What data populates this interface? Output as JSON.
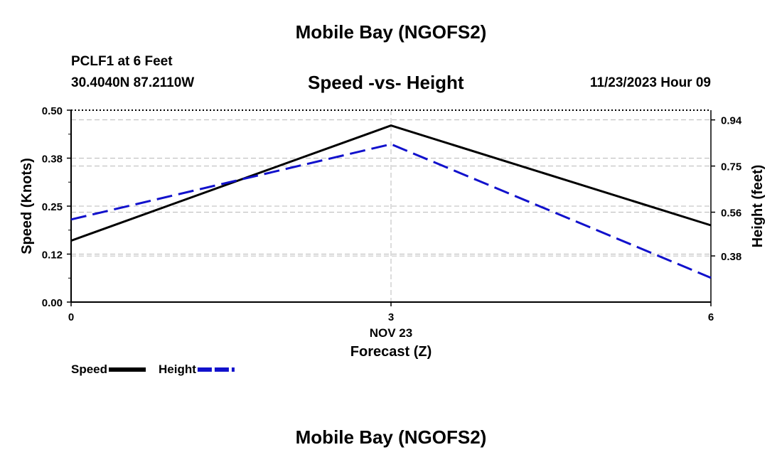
{
  "page": {
    "title_top": "Mobile Bay (NGOFS2)",
    "title_bottom": "Mobile Bay (NGOFS2)",
    "station": "PCLF1 at 6 Feet",
    "coords": "30.4040N  87.2110W",
    "chart_title": "Speed -vs- Height",
    "datetime": "11/23/2023 Hour 09"
  },
  "chart_data": {
    "type": "line",
    "title": "Speed -vs- Height",
    "xlabel": "Forecast (Z)",
    "xsublabel": "NOV 23",
    "x": [
      0,
      3,
      6
    ],
    "x_ticks": [
      "0",
      "3",
      "6"
    ],
    "xlim": [
      0,
      6
    ],
    "ylabel_left": "Speed (Knots)",
    "ylabel_right": "Height (feet)",
    "ylim_left": [
      0,
      0.5
    ],
    "ylim_right": [
      0.19,
      0.98
    ],
    "yticks_left": [
      "0.00",
      "0.12",
      "0.25",
      "0.38",
      "0.50"
    ],
    "yticks_left_values": [
      0,
      0.125,
      0.25,
      0.375,
      0.5
    ],
    "yticks_right": [
      "0.38",
      "0.56",
      "0.75",
      "0.94"
    ],
    "yticks_right_values": [
      0.38,
      0.56,
      0.75,
      0.94
    ],
    "grid": true,
    "legend_placement": "bottom-left",
    "series": [
      {
        "name": "Speed",
        "axis": "left",
        "values": [
          0.16,
          0.46,
          0.2
        ],
        "color": "#000000",
        "dash": "solid"
      },
      {
        "name": "Height",
        "axis": "right",
        "values": [
          0.53,
          0.84,
          0.29
        ],
        "color": "#1111cc",
        "dash": "dashed"
      }
    ]
  }
}
